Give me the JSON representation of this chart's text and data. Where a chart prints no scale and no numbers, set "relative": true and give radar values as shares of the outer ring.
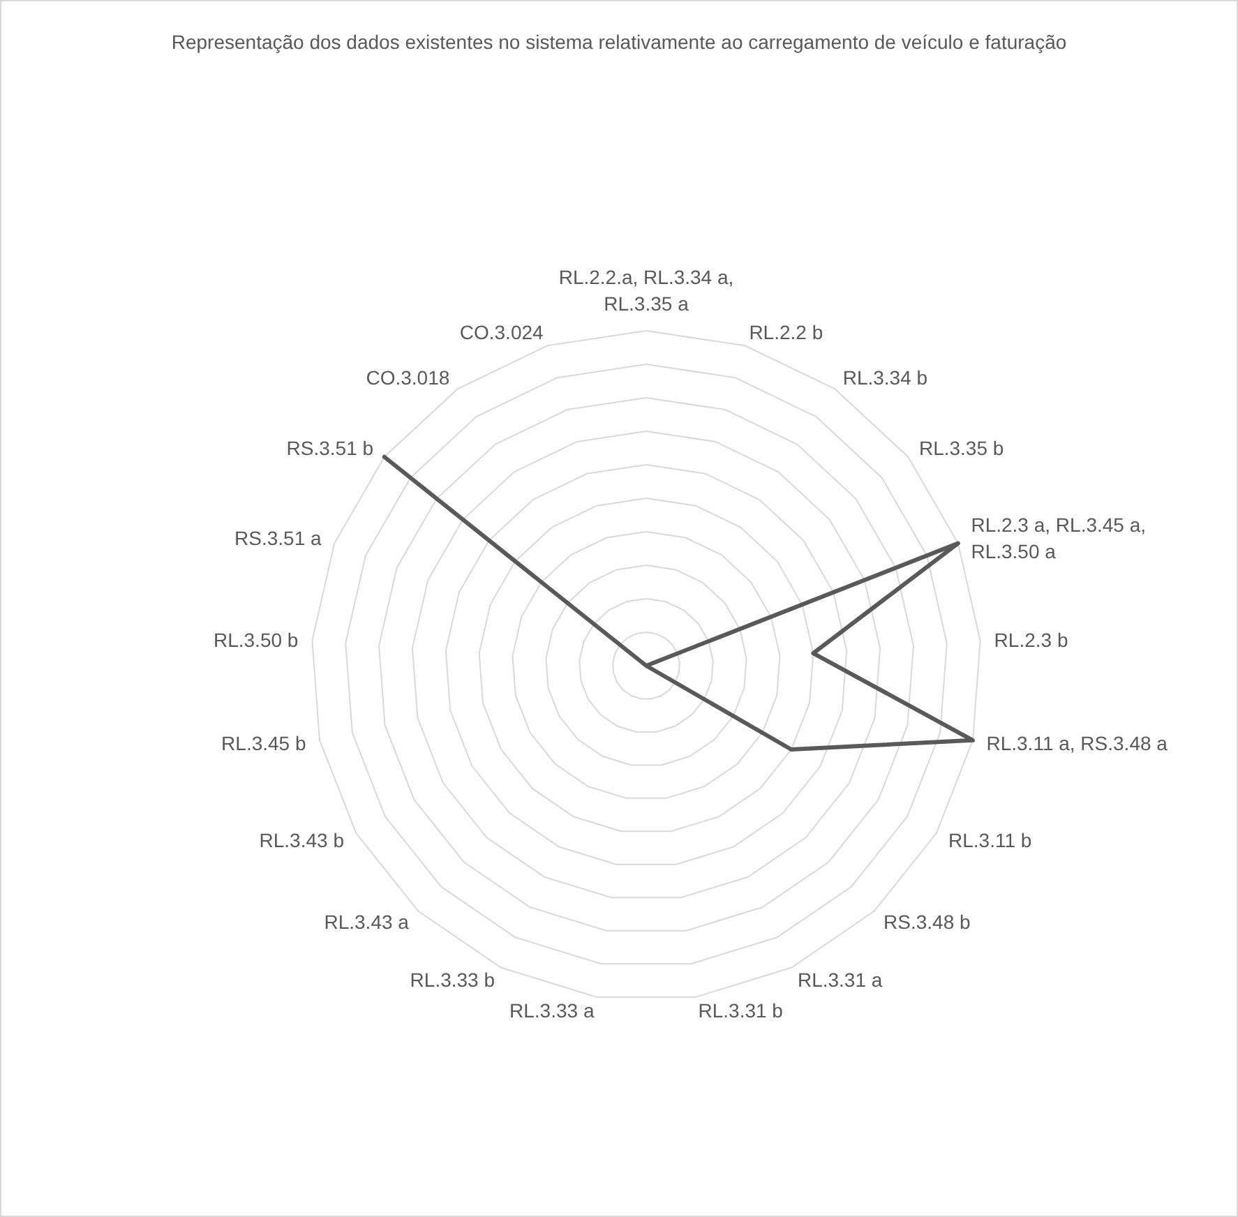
{
  "chart_data": {
    "type": "radar",
    "title": "Representação dos dados existentes no sistema relativamente ao carregamento de veículo e faturação",
    "relative": true,
    "categories": [
      "RL.2.2.a, RL.3.34 a, RL.3.35 a",
      "RL.2.2 b",
      "RL.3.34 b",
      "RL.3.35 b",
      "RL.2.3 a, RL.3.45 a, RL.3.50 a",
      "RL.2.3 b",
      "RL.3.11 a, RS.3.48 a",
      "RL.3.11 b",
      "RS.3.48 b",
      "RL.3.31 a",
      "RL.3.31 b",
      "RL.3.33 a",
      "RL.3.33 b",
      "RL.3.43 a",
      "RL.3.43 b",
      "RL.3.45 b",
      "RL.3.50 b",
      "RS.3.51 a",
      "RS.3.51 b",
      "CO.3.018",
      "CO.3.024"
    ],
    "series": [
      {
        "color": "#595959",
        "values": [
          0,
          0,
          0,
          0,
          1,
          0.5,
          1,
          0.5,
          0,
          0,
          0,
          0,
          0,
          0,
          0,
          0,
          0,
          0,
          1,
          0,
          0
        ]
      }
    ],
    "marker": "none",
    "legend": false
  }
}
